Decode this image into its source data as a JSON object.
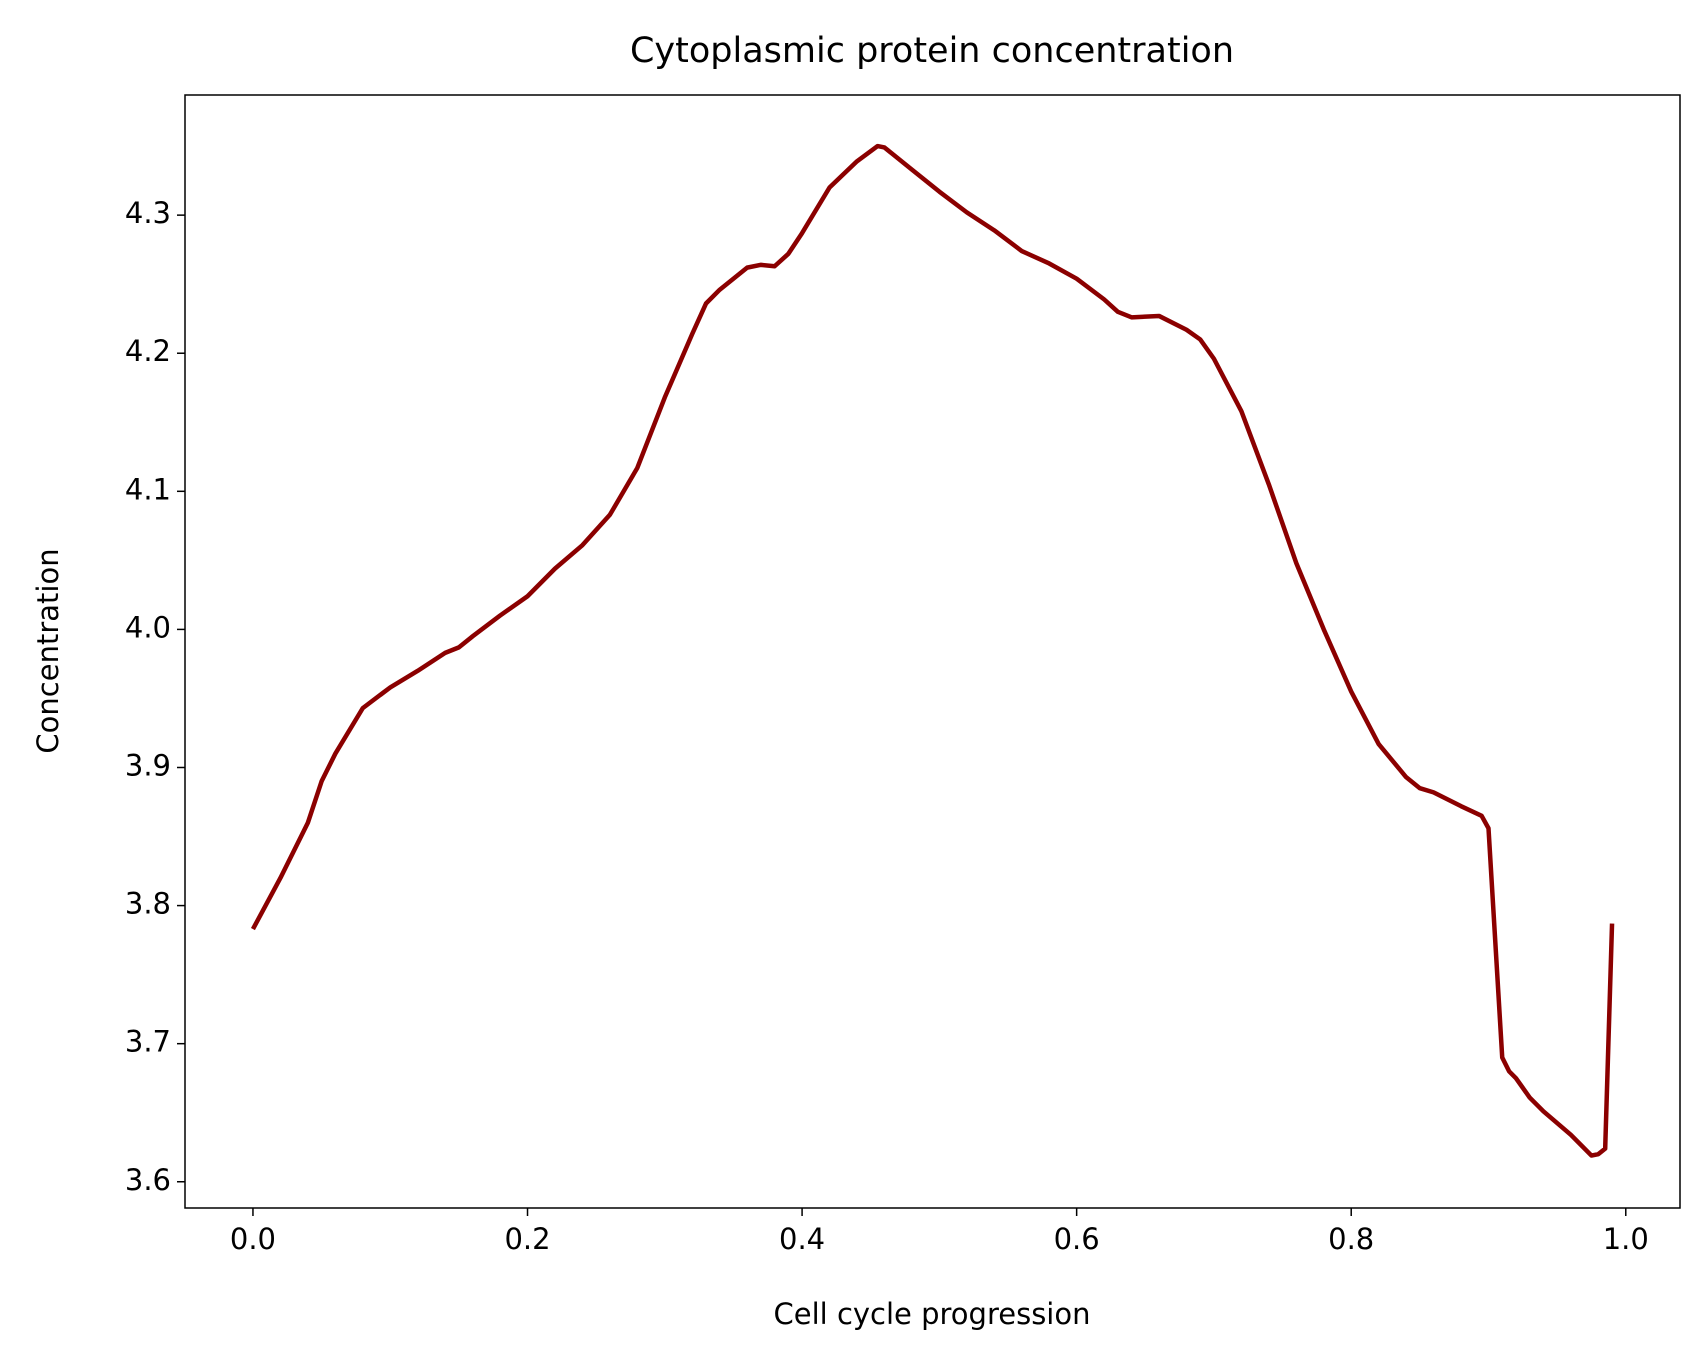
{
  "chart_data": {
    "type": "line",
    "title": "Cytoplasmic protein concentration",
    "x_label": "Cell cycle progression",
    "y_label": "Concentration",
    "x": [
      0,
      0.02,
      0.04,
      0.05,
      0.06,
      0.08,
      0.1,
      0.12,
      0.14,
      0.15,
      0.16,
      0.18,
      0.2,
      0.22,
      0.24,
      0.26,
      0.28,
      0.3,
      0.32,
      0.33,
      0.34,
      0.36,
      0.37,
      0.38,
      0.39,
      0.4,
      0.42,
      0.44,
      0.455,
      0.46,
      0.48,
      0.5,
      0.52,
      0.54,
      0.56,
      0.58,
      0.6,
      0.62,
      0.63,
      0.64,
      0.66,
      0.68,
      0.69,
      0.7,
      0.72,
      0.74,
      0.76,
      0.78,
      0.8,
      0.82,
      0.84,
      0.85,
      0.86,
      0.88,
      0.895,
      0.9,
      0.91,
      0.915,
      0.92,
      0.93,
      0.94,
      0.96,
      0.975,
      0.98,
      0.985,
      0.99
    ],
    "series": [
      {
        "name": "Concentration",
        "color": "#8b0000",
        "values": [
          3.783,
          3.82,
          3.86,
          3.89,
          3.91,
          3.943,
          3.958,
          3.97,
          3.983,
          3.987,
          3.995,
          4.01,
          4.024,
          4.044,
          4.061,
          4.083,
          4.117,
          4.168,
          4.214,
          4.236,
          4.246,
          4.262,
          4.264,
          4.263,
          4.272,
          4.287,
          4.32,
          4.339,
          4.35,
          4.349,
          4.333,
          4.317,
          4.302,
          4.289,
          4.274,
          4.265,
          4.254,
          4.239,
          4.23,
          4.226,
          4.227,
          4.217,
          4.21,
          4.196,
          4.158,
          4.105,
          4.048,
          4.0,
          3.955,
          3.917,
          3.893,
          3.885,
          3.882,
          3.872,
          3.865,
          3.856,
          3.69,
          3.68,
          3.675,
          3.661,
          3.651,
          3.634,
          3.619,
          3.62,
          3.624,
          3.787
        ]
      }
    ],
    "xlim": [
      -0.0495,
      1.0395
    ],
    "ylim": [
      3.581,
      4.387
    ],
    "xticks": [
      {
        "value": 0,
        "label": "0.0"
      },
      0.2,
      0.4,
      0.6,
      0.8,
      {
        "value": 1,
        "label": "1.0"
      }
    ],
    "yticks": [
      3.6,
      3.7,
      3.8,
      3.9,
      {
        "value": 4,
        "label": "4.0"
      },
      4.1,
      4.2,
      4.3
    ],
    "grid": false
  }
}
